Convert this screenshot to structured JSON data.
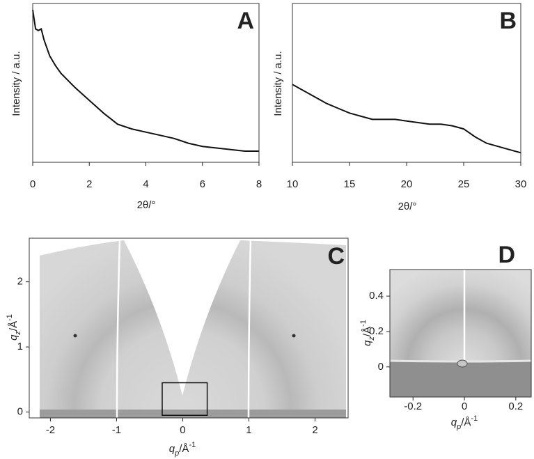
{
  "chart_data": [
    {
      "type": "line",
      "title": "A",
      "ylabel": "Intensity / a.u.",
      "xlabel": "2θ/°",
      "x": [
        0,
        0.1,
        0.2,
        0.3,
        0.4,
        0.6,
        0.8,
        1,
        1.5,
        2,
        2.5,
        3,
        3.5,
        4,
        4.5,
        5,
        5.5,
        6,
        6.5,
        7,
        7.5,
        8
      ],
      "values": [
        0.96,
        0.84,
        0.83,
        0.84,
        0.77,
        0.67,
        0.61,
        0.56,
        0.47,
        0.39,
        0.31,
        0.24,
        0.21,
        0.19,
        0.17,
        0.15,
        0.12,
        0.1,
        0.09,
        0.08,
        0.07,
        0.07
      ],
      "color": "#111111",
      "xlim": [
        0,
        8
      ],
      "xticks": [
        0,
        2,
        4,
        6,
        8
      ],
      "ylim": [
        0,
        1
      ]
    },
    {
      "type": "line",
      "title": "B",
      "ylabel": "Intensity / a.u.",
      "xlabel": "2θ/°",
      "x": [
        10,
        11,
        12,
        13,
        14,
        15,
        16,
        17,
        18,
        19,
        20,
        21,
        22,
        23,
        24,
        25,
        26,
        27,
        28,
        29,
        30
      ],
      "values": [
        0.49,
        0.45,
        0.41,
        0.37,
        0.34,
        0.31,
        0.29,
        0.27,
        0.27,
        0.27,
        0.26,
        0.25,
        0.24,
        0.24,
        0.23,
        0.21,
        0.16,
        0.12,
        0.1,
        0.08,
        0.06
      ],
      "color": "#111111",
      "xlim": [
        10,
        30
      ],
      "xticks": [
        10,
        15,
        20,
        25,
        30
      ],
      "ylim": [
        0,
        1
      ]
    },
    {
      "type": "image",
      "title": "C",
      "xlabel": [
        "q",
        "p",
        "/Å",
        "-1"
      ],
      "ylabel": [
        "q",
        "z",
        "/Å",
        "-1"
      ],
      "xlim": [
        -2.32,
        2.5
      ],
      "xticks": [
        -2,
        -1,
        0,
        1,
        2
      ],
      "ylim": [
        -0.09,
        2.67
      ],
      "yticks": [
        0,
        1,
        2
      ],
      "zoom_box": {
        "x": [
          -0.31,
          0.37
        ],
        "y": [
          -0.05,
          0.45
        ]
      }
    },
    {
      "type": "image",
      "title": "D",
      "xlabel": [
        "q",
        "p",
        "/Å",
        "-1"
      ],
      "ylabel": [
        "q",
        "z",
        "/Å",
        "-1"
      ],
      "xlim": [
        -0.29,
        0.26
      ],
      "xticks": [
        -0.2,
        0,
        0.2
      ],
      "ylim": [
        -0.17,
        0.55
      ],
      "yticks": [
        0,
        0.2,
        0.4
      ]
    }
  ]
}
